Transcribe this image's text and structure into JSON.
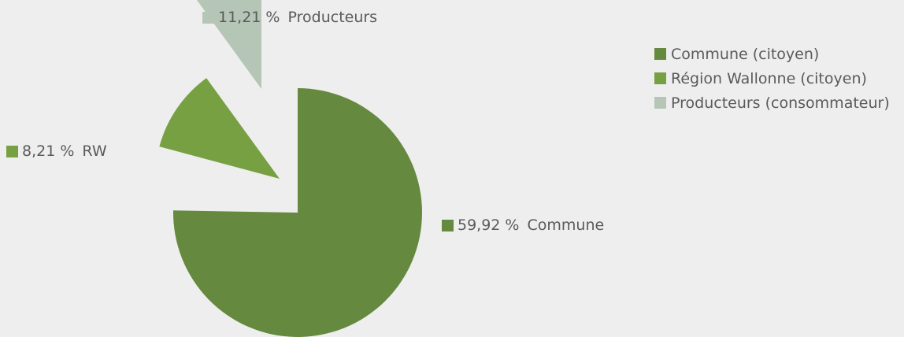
{
  "chart_data": {
    "type": "pie",
    "slices": [
      {
        "name": "Commune (citoyen)",
        "label": "Commune",
        "value_label": "59,92 %",
        "color": "#65893e"
      },
      {
        "name": "Région Wallonne (citoyen)",
        "label": "RW",
        "value_label": "8,21 %",
        "color": "#77a042"
      },
      {
        "name": "Producteurs (consommateur)",
        "label": "Producteurs",
        "value_label": "11,21 %",
        "color": "#b5c6b7"
      }
    ],
    "legend": {
      "placement": "top-right",
      "entries": [
        "Commune (citoyen)",
        "Région Wallonne (citoyen)",
        "Producteurs (consommateur)"
      ]
    },
    "exploded": true
  }
}
